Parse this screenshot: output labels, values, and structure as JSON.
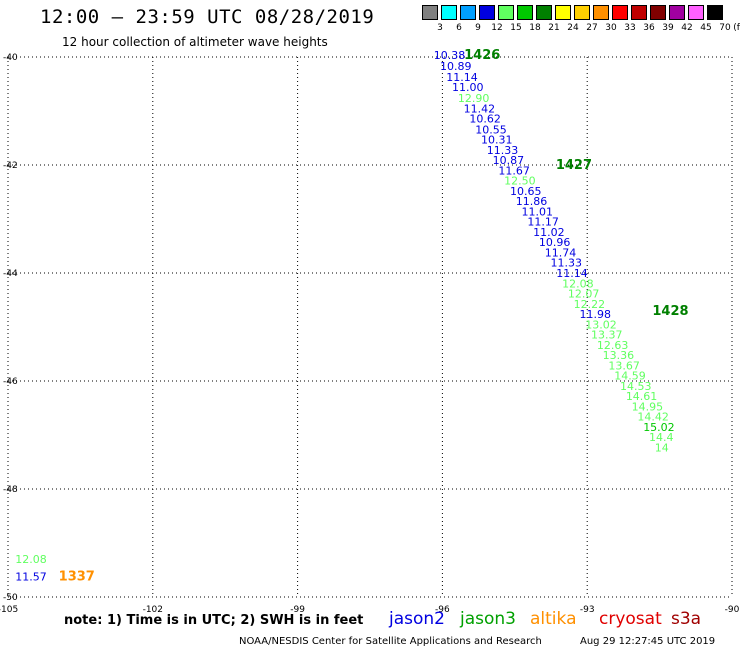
{
  "header": {
    "title": "12:00 – 23:59 UTC 08/28/2019",
    "subtitle": "12 hour collection of altimeter wave heights"
  },
  "legend": {
    "unit": "(ft)",
    "bins": [
      {
        "label": "3",
        "color": "#808080"
      },
      {
        "label": "6",
        "color": "#00ffff"
      },
      {
        "label": "9",
        "color": "#00a0ff"
      },
      {
        "label": "12",
        "color": "#0000e0"
      },
      {
        "label": "15",
        "color": "#60ff60"
      },
      {
        "label": "18",
        "color": "#00c800"
      },
      {
        "label": "21",
        "color": "#008000"
      },
      {
        "label": "24",
        "color": "#ffff00"
      },
      {
        "label": "27",
        "color": "#ffd000"
      },
      {
        "label": "30",
        "color": "#ff9000"
      },
      {
        "label": "33",
        "color": "#ff0000"
      },
      {
        "label": "36",
        "color": "#c00000"
      },
      {
        "label": "39",
        "color": "#800000"
      },
      {
        "label": "42",
        "color": "#a000a0"
      },
      {
        "label": "45",
        "color": "#ff60ff"
      },
      {
        "label": "70",
        "color": "#000000"
      }
    ]
  },
  "chart_data": {
    "type": "scatter",
    "xlim": [
      -105,
      -90
    ],
    "ylim": [
      -50,
      -40
    ],
    "x_ticks": [
      {
        "value": -105,
        "label": "-105"
      },
      {
        "value": -102,
        "label": "-102"
      },
      {
        "value": -99,
        "label": "-99"
      },
      {
        "value": -96,
        "label": "-96"
      },
      {
        "value": -93,
        "label": "-93"
      },
      {
        "value": -90,
        "label": "-90"
      }
    ],
    "y_ticks": [
      {
        "value": -40,
        "label": "-40"
      },
      {
        "value": -42,
        "label": "-42"
      },
      {
        "value": -44,
        "label": "-44"
      },
      {
        "value": -46,
        "label": "-46"
      },
      {
        "value": -48,
        "label": "-48"
      },
      {
        "value": -50,
        "label": "-50"
      }
    ],
    "grid": true,
    "points": [
      {
        "lon": -96.18,
        "lat": -39.96,
        "text": "10.38",
        "color": "#0000e0"
      },
      {
        "lon": -96.05,
        "lat": -40.17,
        "text": "10.89",
        "color": "#0000e0"
      },
      {
        "lon": -95.92,
        "lat": -40.37,
        "text": "11.14",
        "color": "#0000e0"
      },
      {
        "lon": -95.8,
        "lat": -40.56,
        "text": "11.00",
        "color": "#0000e0"
      },
      {
        "lon": -95.68,
        "lat": -40.76,
        "text": "12.90",
        "color": "#60ff60"
      },
      {
        "lon": -95.56,
        "lat": -40.95,
        "text": "11.42",
        "color": "#0000e0"
      },
      {
        "lon": -95.44,
        "lat": -41.14,
        "text": "10.62",
        "color": "#0000e0"
      },
      {
        "lon": -95.32,
        "lat": -41.34,
        "text": "10.55",
        "color": "#0000e0"
      },
      {
        "lon": -95.2,
        "lat": -41.53,
        "text": "10.31",
        "color": "#0000e0"
      },
      {
        "lon": -95.08,
        "lat": -41.72,
        "text": "11.33",
        "color": "#0000e0"
      },
      {
        "lon": -94.96,
        "lat": -41.91,
        "text": "10.87",
        "color": "#0000e0"
      },
      {
        "lon": -94.84,
        "lat": -42.1,
        "text": "11.67",
        "color": "#0000e0"
      },
      {
        "lon": -94.72,
        "lat": -42.29,
        "text": "12.50",
        "color": "#60ff60"
      },
      {
        "lon": -94.6,
        "lat": -42.48,
        "text": "10.65",
        "color": "#0000e0"
      },
      {
        "lon": -94.48,
        "lat": -42.67,
        "text": "11.86",
        "color": "#0000e0"
      },
      {
        "lon": -94.36,
        "lat": -42.86,
        "text": "11.01",
        "color": "#0000e0"
      },
      {
        "lon": -94.24,
        "lat": -43.05,
        "text": "11.17",
        "color": "#0000e0"
      },
      {
        "lon": -94.12,
        "lat": -43.24,
        "text": "11.02",
        "color": "#0000e0"
      },
      {
        "lon": -94.0,
        "lat": -43.43,
        "text": "10.96",
        "color": "#0000e0"
      },
      {
        "lon": -93.88,
        "lat": -43.62,
        "text": "11.74",
        "color": "#0000e0"
      },
      {
        "lon": -93.76,
        "lat": -43.81,
        "text": "11.33",
        "color": "#0000e0"
      },
      {
        "lon": -93.64,
        "lat": -44.0,
        "text": "11.14",
        "color": "#0000e0"
      },
      {
        "lon": -93.52,
        "lat": -44.19,
        "text": "12.08",
        "color": "#60ff60"
      },
      {
        "lon": -93.4,
        "lat": -44.38,
        "text": "12.07",
        "color": "#60ff60"
      },
      {
        "lon": -93.28,
        "lat": -44.57,
        "text": "12.22",
        "color": "#60ff60"
      },
      {
        "lon": -93.16,
        "lat": -44.76,
        "text": "11.98",
        "color": "#0000e0"
      },
      {
        "lon": -93.04,
        "lat": -44.95,
        "text": "13.02",
        "color": "#60ff60"
      },
      {
        "lon": -92.92,
        "lat": -45.14,
        "text": "13.37",
        "color": "#60ff60"
      },
      {
        "lon": -92.8,
        "lat": -45.33,
        "text": "12.63",
        "color": "#60ff60"
      },
      {
        "lon": -92.68,
        "lat": -45.52,
        "text": "13.36",
        "color": "#60ff60"
      },
      {
        "lon": -92.56,
        "lat": -45.71,
        "text": "13.67",
        "color": "#60ff60"
      },
      {
        "lon": -92.44,
        "lat": -45.9,
        "text": "14.59",
        "color": "#60ff60"
      },
      {
        "lon": -92.32,
        "lat": -46.09,
        "text": "14.53",
        "color": "#60ff60"
      },
      {
        "lon": -92.2,
        "lat": -46.28,
        "text": "14.61",
        "color": "#60ff60"
      },
      {
        "lon": -92.08,
        "lat": -46.47,
        "text": "14.95",
        "color": "#60ff60"
      },
      {
        "lon": -91.96,
        "lat": -46.66,
        "text": "14.42",
        "color": "#60ff60"
      },
      {
        "lon": -91.84,
        "lat": -46.85,
        "text": "15.02",
        "color": "#00c800"
      },
      {
        "lon": -91.72,
        "lat": -47.04,
        "text": "14.4",
        "color": "#60ff60"
      },
      {
        "lon": -91.6,
        "lat": -47.23,
        "text": "14",
        "color": "#60ff60"
      },
      {
        "lon": -104.85,
        "lat": -49.3,
        "text": "12.08",
        "color": "#60ff60"
      },
      {
        "lon": -104.85,
        "lat": -49.62,
        "text": "11.57",
        "color": "#0000e0"
      }
    ],
    "pass_labels": [
      {
        "lon": -95.55,
        "lat": -39.96,
        "text": "1426",
        "color": "#008000"
      },
      {
        "lon": -93.65,
        "lat": -42.0,
        "text": "1427",
        "color": "#008000"
      },
      {
        "lon": -91.65,
        "lat": -44.7,
        "text": "1428",
        "color": "#008000"
      },
      {
        "lon": -103.95,
        "lat": -49.62,
        "text": "1337",
        "color": "#ff9000"
      }
    ]
  },
  "note": "note: 1) Time is in UTC; 2) SWH is in feet",
  "satellites": [
    {
      "name": "jason2",
      "color": "#0000e0"
    },
    {
      "name": "jason3",
      "color": "#00a000"
    },
    {
      "name": "altika",
      "color": "#ff9000"
    },
    {
      "name": "cryosat",
      "color": "#e00000"
    },
    {
      "name": "s3a",
      "color": "#a00000"
    }
  ],
  "footer": {
    "credit": "NOAA/NESDIS Center for Satellite Applications and Research",
    "timestamp": "Aug 29 12:27:45 UTC 2019"
  }
}
